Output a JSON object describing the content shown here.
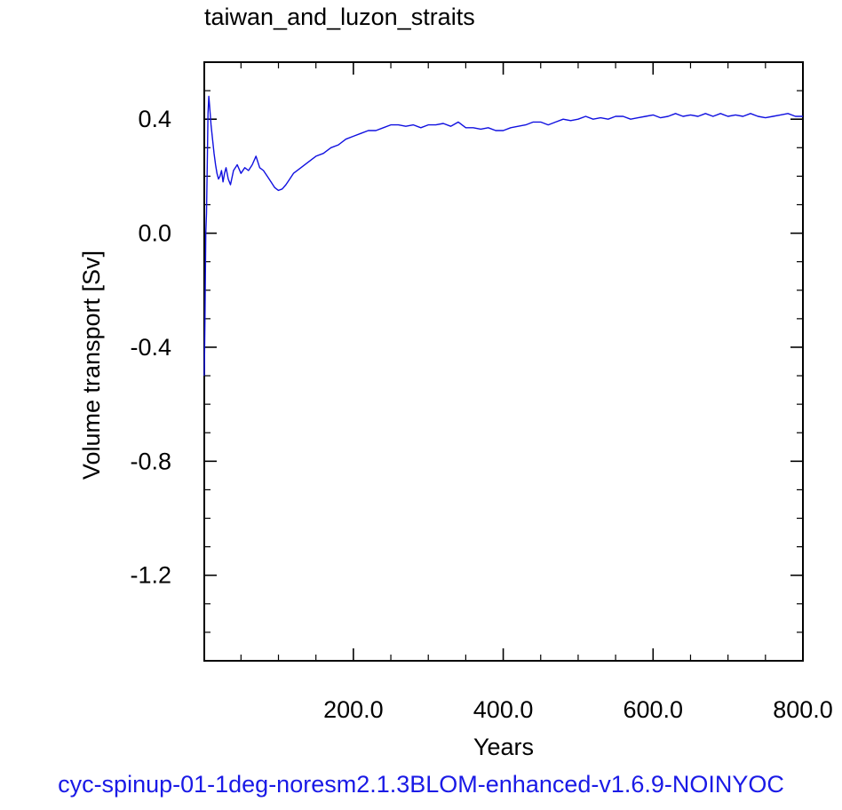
{
  "chart_data": {
    "type": "line",
    "title": "taiwan_and_luzon_straits",
    "xlabel": "Years",
    "ylabel": "Volume transport [Sv]",
    "caption": "cyc-spinup-01-1deg-noresm2.1.3BLOM-enhanced-v1.6.9-NOINYOC",
    "xlim": [
      1,
      800
    ],
    "ylim": [
      -1.5,
      0.6
    ],
    "x_ticks": [
      200,
      400,
      600,
      800
    ],
    "x_tick_labels": [
      "200.0",
      "400.0",
      "600.0",
      "800.0"
    ],
    "y_ticks": [
      0.4,
      0.0,
      -0.4,
      -0.8,
      -1.2
    ],
    "y_tick_labels": [
      "0.4",
      "0.0",
      "-0.4",
      "-0.8",
      "-1.2"
    ],
    "grid": false,
    "series": [
      {
        "color": "#1010e0",
        "x": [
          1,
          2,
          3,
          4,
          5,
          6,
          7,
          8,
          10,
          12,
          14,
          16,
          18,
          20,
          22,
          24,
          26,
          28,
          30,
          33,
          36,
          40,
          45,
          50,
          55,
          60,
          65,
          70,
          75,
          80,
          85,
          90,
          95,
          100,
          105,
          110,
          115,
          120,
          130,
          140,
          150,
          160,
          170,
          180,
          190,
          200,
          210,
          220,
          230,
          240,
          250,
          260,
          270,
          280,
          290,
          300,
          310,
          320,
          330,
          340,
          350,
          360,
          370,
          380,
          390,
          400,
          410,
          420,
          430,
          440,
          450,
          460,
          470,
          480,
          490,
          500,
          510,
          520,
          530,
          540,
          550,
          560,
          570,
          580,
          590,
          600,
          610,
          620,
          630,
          640,
          650,
          660,
          670,
          680,
          690,
          700,
          710,
          720,
          730,
          740,
          750,
          760,
          770,
          780,
          790,
          800
        ],
        "y": [
          -0.5,
          -0.3,
          0.0,
          0.07,
          0.25,
          0.42,
          0.48,
          0.45,
          0.38,
          0.33,
          0.28,
          0.24,
          0.21,
          0.19,
          0.2,
          0.22,
          0.18,
          0.21,
          0.23,
          0.19,
          0.17,
          0.22,
          0.24,
          0.21,
          0.23,
          0.22,
          0.24,
          0.27,
          0.23,
          0.22,
          0.2,
          0.18,
          0.16,
          0.15,
          0.155,
          0.17,
          0.19,
          0.21,
          0.23,
          0.25,
          0.27,
          0.28,
          0.3,
          0.31,
          0.33,
          0.34,
          0.35,
          0.36,
          0.36,
          0.37,
          0.38,
          0.38,
          0.375,
          0.38,
          0.37,
          0.38,
          0.38,
          0.385,
          0.375,
          0.39,
          0.37,
          0.37,
          0.365,
          0.37,
          0.36,
          0.36,
          0.37,
          0.375,
          0.38,
          0.39,
          0.39,
          0.38,
          0.39,
          0.4,
          0.395,
          0.4,
          0.41,
          0.4,
          0.405,
          0.4,
          0.41,
          0.41,
          0.4,
          0.405,
          0.41,
          0.415,
          0.405,
          0.41,
          0.42,
          0.41,
          0.415,
          0.41,
          0.42,
          0.41,
          0.42,
          0.41,
          0.415,
          0.41,
          0.42,
          0.41,
          0.405,
          0.41,
          0.415,
          0.42,
          0.41,
          0.41
        ]
      }
    ]
  }
}
